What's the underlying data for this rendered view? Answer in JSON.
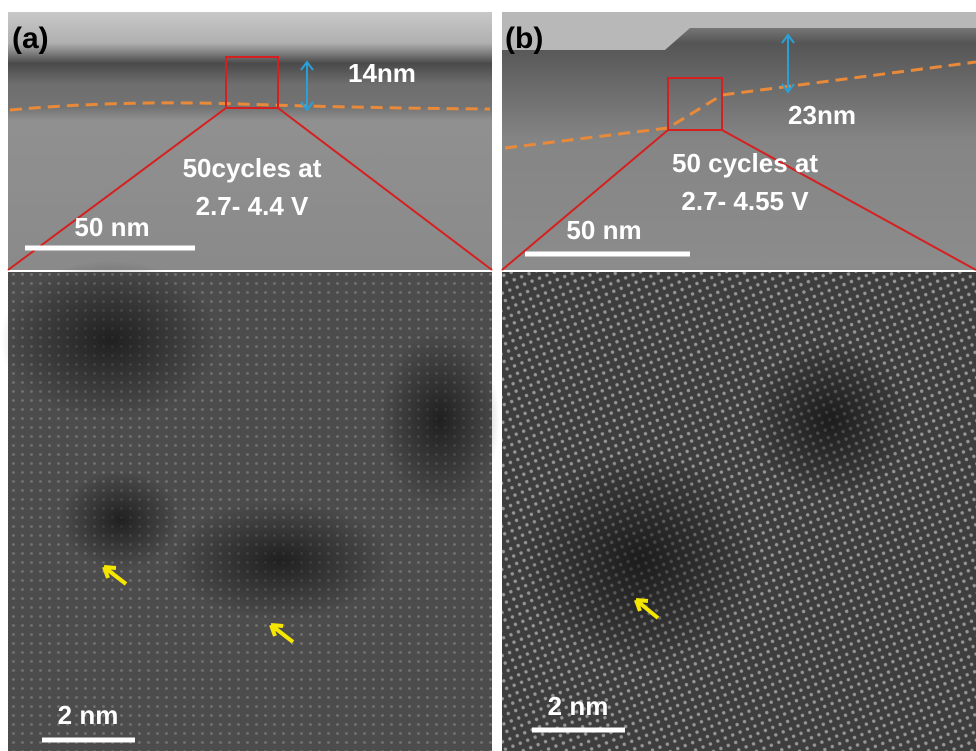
{
  "panels": [
    {
      "label": "(a)",
      "thickness": "14nm",
      "condition": [
        "50cycles at",
        "2.7- 4.4 V"
      ],
      "top_scale": "50 nm",
      "bottom_scale": "2 nm"
    },
    {
      "label": "(b)",
      "thickness": "23nm",
      "condition": [
        "50 cycles at",
        "2.7- 4.55 V"
      ],
      "top_scale": "50 nm",
      "bottom_scale": "2 nm"
    }
  ]
}
